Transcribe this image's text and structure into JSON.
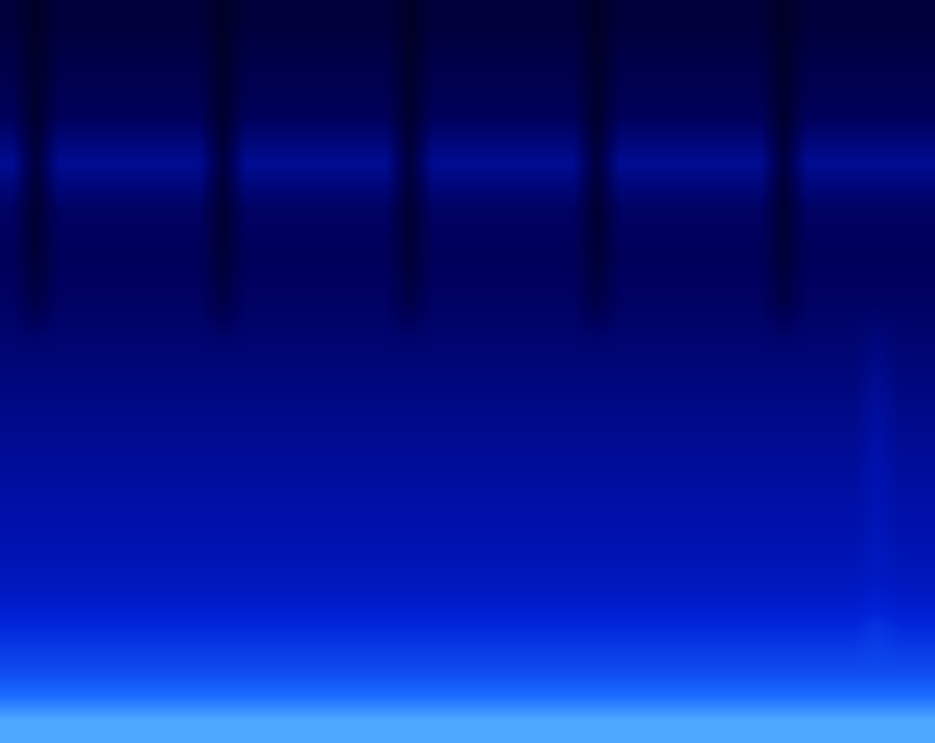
{
  "chart_data": {
    "type": "heatmap",
    "tick_labels": false,
    "zlim": [
      0,
      1
    ],
    "cells": [
      [
        0.12,
        0.06,
        0.12,
        0.12,
        0.12,
        0.12,
        0.12,
        0.12,
        0.12,
        0.06,
        0.12,
        0.12,
        0.12,
        0.12,
        0.12,
        0.12,
        0.12,
        0.06,
        0.12,
        0.12,
        0.12,
        0.12,
        0.12,
        0.12,
        0.12,
        0.06,
        0.12,
        0.12,
        0.12,
        0.12,
        0.12,
        0.12,
        0.12,
        0.06,
        0.12,
        0.12,
        0.12,
        0.12,
        0.12,
        0.12
      ],
      [
        0.16,
        0.07,
        0.16,
        0.16,
        0.16,
        0.16,
        0.16,
        0.16,
        0.16,
        0.07,
        0.16,
        0.16,
        0.16,
        0.16,
        0.16,
        0.16,
        0.16,
        0.07,
        0.16,
        0.16,
        0.16,
        0.16,
        0.16,
        0.16,
        0.16,
        0.07,
        0.16,
        0.16,
        0.16,
        0.16,
        0.16,
        0.16,
        0.16,
        0.07,
        0.16,
        0.16,
        0.16,
        0.16,
        0.16,
        0.16
      ],
      [
        0.2,
        0.08,
        0.2,
        0.2,
        0.2,
        0.2,
        0.2,
        0.2,
        0.2,
        0.08,
        0.2,
        0.2,
        0.2,
        0.2,
        0.2,
        0.2,
        0.2,
        0.08,
        0.2,
        0.2,
        0.2,
        0.2,
        0.2,
        0.2,
        0.2,
        0.08,
        0.2,
        0.2,
        0.2,
        0.2,
        0.2,
        0.2,
        0.2,
        0.08,
        0.2,
        0.2,
        0.2,
        0.2,
        0.2,
        0.2
      ],
      [
        0.34,
        0.12,
        0.34,
        0.34,
        0.34,
        0.34,
        0.34,
        0.34,
        0.34,
        0.12,
        0.34,
        0.34,
        0.34,
        0.34,
        0.34,
        0.34,
        0.34,
        0.12,
        0.34,
        0.34,
        0.34,
        0.34,
        0.34,
        0.34,
        0.34,
        0.12,
        0.34,
        0.34,
        0.34,
        0.34,
        0.34,
        0.34,
        0.34,
        0.12,
        0.34,
        0.34,
        0.34,
        0.34,
        0.34,
        0.34
      ],
      [
        0.22,
        0.09,
        0.22,
        0.22,
        0.22,
        0.22,
        0.22,
        0.22,
        0.22,
        0.09,
        0.22,
        0.22,
        0.22,
        0.22,
        0.22,
        0.22,
        0.22,
        0.09,
        0.22,
        0.22,
        0.22,
        0.22,
        0.22,
        0.22,
        0.22,
        0.09,
        0.22,
        0.22,
        0.22,
        0.22,
        0.22,
        0.22,
        0.22,
        0.09,
        0.22,
        0.22,
        0.22,
        0.22,
        0.22,
        0.22
      ],
      [
        0.2,
        0.1,
        0.2,
        0.2,
        0.2,
        0.2,
        0.2,
        0.2,
        0.2,
        0.1,
        0.2,
        0.2,
        0.2,
        0.2,
        0.2,
        0.2,
        0.2,
        0.1,
        0.2,
        0.2,
        0.2,
        0.2,
        0.2,
        0.2,
        0.2,
        0.1,
        0.2,
        0.2,
        0.2,
        0.2,
        0.2,
        0.2,
        0.2,
        0.1,
        0.2,
        0.2,
        0.2,
        0.2,
        0.2,
        0.2
      ],
      [
        0.22,
        0.15,
        0.22,
        0.22,
        0.22,
        0.22,
        0.22,
        0.22,
        0.22,
        0.15,
        0.22,
        0.22,
        0.22,
        0.22,
        0.22,
        0.22,
        0.22,
        0.15,
        0.22,
        0.22,
        0.22,
        0.22,
        0.22,
        0.22,
        0.22,
        0.15,
        0.22,
        0.22,
        0.22,
        0.22,
        0.22,
        0.22,
        0.22,
        0.15,
        0.22,
        0.22,
        0.22,
        0.22,
        0.22,
        0.22
      ],
      [
        0.26,
        0.26,
        0.26,
        0.26,
        0.26,
        0.26,
        0.26,
        0.26,
        0.26,
        0.26,
        0.26,
        0.26,
        0.26,
        0.26,
        0.26,
        0.26,
        0.26,
        0.26,
        0.26,
        0.26,
        0.26,
        0.26,
        0.26,
        0.26,
        0.26,
        0.26,
        0.26,
        0.26,
        0.26,
        0.26,
        0.26,
        0.26,
        0.26,
        0.26,
        0.26,
        0.26,
        0.26,
        0.3,
        0.26,
        0.26
      ],
      [
        0.3,
        0.3,
        0.3,
        0.3,
        0.3,
        0.3,
        0.3,
        0.3,
        0.3,
        0.3,
        0.3,
        0.3,
        0.3,
        0.3,
        0.3,
        0.3,
        0.3,
        0.3,
        0.3,
        0.3,
        0.3,
        0.3,
        0.3,
        0.3,
        0.3,
        0.3,
        0.3,
        0.3,
        0.3,
        0.3,
        0.3,
        0.3,
        0.3,
        0.3,
        0.3,
        0.3,
        0.3,
        0.36,
        0.3,
        0.3
      ],
      [
        0.34,
        0.34,
        0.34,
        0.34,
        0.34,
        0.34,
        0.34,
        0.34,
        0.34,
        0.34,
        0.34,
        0.34,
        0.34,
        0.34,
        0.34,
        0.34,
        0.34,
        0.34,
        0.34,
        0.34,
        0.34,
        0.34,
        0.34,
        0.34,
        0.34,
        0.34,
        0.34,
        0.34,
        0.34,
        0.34,
        0.34,
        0.34,
        0.34,
        0.34,
        0.34,
        0.34,
        0.34,
        0.4,
        0.34,
        0.34
      ],
      [
        0.38,
        0.38,
        0.38,
        0.38,
        0.38,
        0.38,
        0.38,
        0.38,
        0.38,
        0.38,
        0.38,
        0.38,
        0.38,
        0.38,
        0.38,
        0.38,
        0.38,
        0.38,
        0.38,
        0.38,
        0.38,
        0.38,
        0.38,
        0.38,
        0.38,
        0.38,
        0.38,
        0.38,
        0.38,
        0.38,
        0.38,
        0.38,
        0.38,
        0.38,
        0.38,
        0.38,
        0.38,
        0.44,
        0.38,
        0.38
      ],
      [
        0.42,
        0.42,
        0.42,
        0.42,
        0.42,
        0.42,
        0.42,
        0.42,
        0.42,
        0.42,
        0.42,
        0.42,
        0.42,
        0.42,
        0.42,
        0.42,
        0.42,
        0.42,
        0.42,
        0.42,
        0.42,
        0.42,
        0.42,
        0.42,
        0.42,
        0.42,
        0.42,
        0.42,
        0.42,
        0.42,
        0.42,
        0.42,
        0.42,
        0.42,
        0.42,
        0.42,
        0.42,
        0.47,
        0.42,
        0.42
      ],
      [
        0.48,
        0.48,
        0.48,
        0.48,
        0.48,
        0.48,
        0.48,
        0.48,
        0.48,
        0.48,
        0.48,
        0.48,
        0.48,
        0.48,
        0.48,
        0.48,
        0.48,
        0.48,
        0.48,
        0.48,
        0.48,
        0.48,
        0.48,
        0.48,
        0.48,
        0.48,
        0.48,
        0.48,
        0.48,
        0.48,
        0.48,
        0.48,
        0.48,
        0.48,
        0.48,
        0.48,
        0.48,
        0.52,
        0.48,
        0.48
      ],
      [
        0.62,
        0.62,
        0.62,
        0.62,
        0.62,
        0.62,
        0.62,
        0.62,
        0.62,
        0.62,
        0.62,
        0.62,
        0.62,
        0.62,
        0.62,
        0.62,
        0.62,
        0.62,
        0.62,
        0.62,
        0.62,
        0.62,
        0.62,
        0.62,
        0.62,
        0.62,
        0.62,
        0.62,
        0.62,
        0.62,
        0.62,
        0.62,
        0.62,
        0.62,
        0.62,
        0.62,
        0.62,
        0.65,
        0.62,
        0.62
      ],
      [
        0.72,
        0.72,
        0.72,
        0.72,
        0.72,
        0.72,
        0.72,
        0.72,
        0.72,
        0.72,
        0.72,
        0.72,
        0.72,
        0.72,
        0.72,
        0.72,
        0.72,
        0.72,
        0.72,
        0.72,
        0.72,
        0.72,
        0.72,
        0.72,
        0.72,
        0.72,
        0.72,
        0.72,
        0.72,
        0.72,
        0.72,
        0.72,
        0.72,
        0.72,
        0.72,
        0.72,
        0.72,
        0.72,
        0.72,
        0.72
      ],
      [
        0.9,
        0.9,
        0.9,
        0.9,
        0.9,
        0.9,
        0.9,
        0.9,
        0.9,
        0.9,
        0.9,
        0.9,
        0.9,
        0.9,
        0.9,
        0.9,
        0.9,
        0.9,
        0.9,
        0.9,
        0.9,
        0.9,
        0.9,
        0.9,
        0.9,
        0.9,
        0.9,
        0.9,
        0.9,
        0.9,
        0.9,
        0.9,
        0.9,
        0.9,
        0.9,
        0.9,
        0.9,
        0.9,
        0.9,
        0.9
      ]
    ]
  }
}
